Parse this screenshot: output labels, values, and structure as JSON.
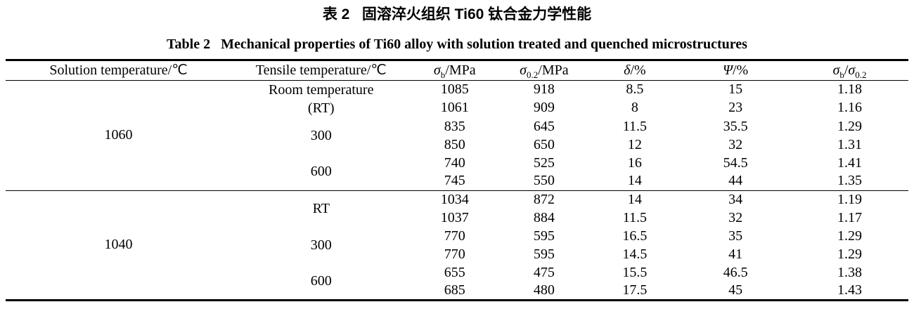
{
  "caption": {
    "zh": "表 2   固溶淬火组织 Ti60 钛合金力学性能",
    "en": "Table 2   Mechanical properties of Ti60 alloy with solution treated and quenched microstructures"
  },
  "table": {
    "headers": {
      "solution_temp": "Solution temperature/℃",
      "tensile_temp": "Tensile temperature/℃",
      "sigma_b": {
        "sym": "σ",
        "sub": "b",
        "rest": "/MPa"
      },
      "sigma_02": {
        "sym": "σ",
        "sub": "0.2",
        "rest": "/MPa"
      },
      "delta": {
        "sym": "δ",
        "rest": "/%"
      },
      "psi": {
        "sym": "Ψ",
        "rest": "/%"
      },
      "ratio": {
        "sym_a": "σ",
        "sub_a": "b",
        "slash": "/",
        "sym_b": "σ",
        "sub_b": "0.2"
      }
    },
    "sections": [
      {
        "solution_temperature": "1060",
        "tensile": {
          "group1_line1": "Room temperature",
          "group1_line2": "(RT)",
          "group2": "300",
          "group3": "600"
        },
        "rows": [
          [
            "1085",
            "918",
            "8.5",
            "15",
            "1.18"
          ],
          [
            "1061",
            "909",
            "8",
            "23",
            "1.16"
          ],
          [
            "835",
            "645",
            "11.5",
            "35.5",
            "1.29"
          ],
          [
            "850",
            "650",
            "12",
            "32",
            "1.31"
          ],
          [
            "740",
            "525",
            "16",
            "54.5",
            "1.41"
          ],
          [
            "745",
            "550",
            "14",
            "44",
            "1.35"
          ]
        ]
      },
      {
        "solution_temperature": "1040",
        "tensile": {
          "group1": "RT",
          "group2": "300",
          "group3": "600"
        },
        "rows": [
          [
            "1034",
            "872",
            "14",
            "34",
            "1.19"
          ],
          [
            "1037",
            "884",
            "11.5",
            "32",
            "1.17"
          ],
          [
            "770",
            "595",
            "16.5",
            "35",
            "1.29"
          ],
          [
            "770",
            "595",
            "14.5",
            "41",
            "1.29"
          ],
          [
            "655",
            "475",
            "15.5",
            "46.5",
            "1.38"
          ],
          [
            "685",
            "480",
            "17.5",
            "45",
            "1.43"
          ]
        ]
      }
    ]
  }
}
